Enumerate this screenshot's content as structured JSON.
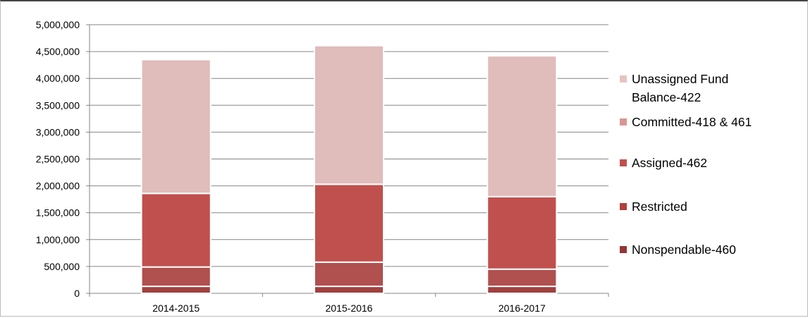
{
  "chart_data": {
    "type": "bar",
    "stacked": true,
    "categories": [
      "2014-2015",
      "2015-2016",
      "2016-2017"
    ],
    "ylim": [
      0,
      5000000
    ],
    "yticks": [
      0,
      500000,
      1000000,
      1500000,
      2000000,
      2500000,
      3000000,
      3500000,
      4000000,
      4500000,
      5000000
    ],
    "ytick_labels": [
      "0",
      "500,000",
      "1,000,000",
      "1,500,000",
      "2,000,000",
      "2,500,000",
      "3,000,000",
      "3,500,000",
      "4,000,000",
      "4,500,000",
      "5,000,000"
    ],
    "grid": true,
    "legend_position": "right",
    "series": [
      {
        "name": "Nonspendable-460",
        "color": "#a0413f",
        "values": [
          130000,
          130000,
          130000
        ]
      },
      {
        "name": "Restricted",
        "color": "#b0504f",
        "values": [
          360000,
          450000,
          320000
        ]
      },
      {
        "name": "Assigned-462",
        "color": "#c0504d",
        "values": [
          1370000,
          1450000,
          1350000
        ]
      },
      {
        "name": "Committed-418 & 461",
        "color": "#d99694",
        "values": [
          0,
          0,
          0
        ]
      },
      {
        "name": "Unassigned Fund Balance-422",
        "color": "#e0bcbb",
        "values": [
          2490000,
          2580000,
          2620000
        ]
      }
    ],
    "legend": [
      {
        "lines": [
          "Unassigned Fund",
          "Balance-422"
        ],
        "color": "#e6c3c2"
      },
      {
        "lines": [
          "Committed-418 & 461"
        ],
        "color": "#d99694"
      },
      {
        "lines": [
          "Assigned-462"
        ],
        "color": "#c0504d"
      },
      {
        "lines": [
          "Restricted"
        ],
        "color": "#b0403d"
      },
      {
        "lines": [
          "Nonspendable-460"
        ],
        "color": "#943634"
      }
    ]
  }
}
